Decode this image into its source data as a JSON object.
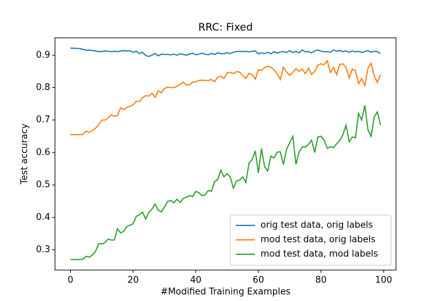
{
  "chart_data": {
    "type": "line",
    "title": "RRC: Fixed",
    "x_label": "#Modified Training Examples",
    "y_label": "Test accuracy",
    "x": [
      0,
      1,
      2,
      3,
      4,
      5,
      6,
      7,
      8,
      9,
      10,
      11,
      12,
      13,
      14,
      15,
      16,
      17,
      18,
      19,
      20,
      21,
      22,
      23,
      24,
      25,
      26,
      27,
      28,
      29,
      30,
      31,
      32,
      33,
      34,
      35,
      36,
      37,
      38,
      39,
      40,
      41,
      42,
      43,
      44,
      45,
      46,
      47,
      48,
      49,
      50,
      51,
      52,
      53,
      54,
      55,
      56,
      57,
      58,
      59,
      60,
      61,
      62,
      63,
      64,
      65,
      66,
      67,
      68,
      69,
      70,
      71,
      72,
      73,
      74,
      75,
      76,
      77,
      78,
      79,
      80,
      81,
      82,
      83,
      84,
      85,
      86,
      87,
      88,
      89,
      90,
      91,
      92,
      93,
      94,
      95,
      96,
      97,
      98,
      99
    ],
    "series": [
      {
        "name": "orig test data, orig labels",
        "color": "#1f77b4",
        "values": [
          0.922,
          0.921,
          0.921,
          0.92,
          0.918,
          0.915,
          0.916,
          0.914,
          0.913,
          0.911,
          0.911,
          0.913,
          0.912,
          0.911,
          0.912,
          0.911,
          0.913,
          0.914,
          0.913,
          0.913,
          0.909,
          0.912,
          0.905,
          0.909,
          0.899,
          0.896,
          0.9,
          0.905,
          0.898,
          0.903,
          0.902,
          0.902,
          0.901,
          0.903,
          0.9,
          0.904,
          0.902,
          0.9,
          0.903,
          0.906,
          0.901,
          0.903,
          0.906,
          0.903,
          0.901,
          0.905,
          0.902,
          0.907,
          0.905,
          0.904,
          0.908,
          0.905,
          0.909,
          0.911,
          0.912,
          0.911,
          0.912,
          0.91,
          0.912,
          0.913,
          0.904,
          0.907,
          0.905,
          0.909,
          0.904,
          0.911,
          0.906,
          0.91,
          0.911,
          0.908,
          0.914,
          0.908,
          0.912,
          0.907,
          0.916,
          0.91,
          0.911,
          0.907,
          0.913,
          0.916,
          0.912,
          0.91,
          0.911,
          0.909,
          0.916,
          0.912,
          0.914,
          0.911,
          0.913,
          0.909,
          0.913,
          0.91,
          0.912,
          0.908,
          0.911,
          0.914,
          0.909,
          0.912,
          0.911,
          0.905
        ]
      },
      {
        "name": "mod test data, orig labels",
        "color": "#ff7f0e",
        "values": [
          0.655,
          0.655,
          0.655,
          0.655,
          0.656,
          0.666,
          0.662,
          0.667,
          0.675,
          0.685,
          0.7,
          0.7,
          0.706,
          0.716,
          0.712,
          0.714,
          0.738,
          0.732,
          0.739,
          0.742,
          0.747,
          0.758,
          0.757,
          0.769,
          0.775,
          0.774,
          0.782,
          0.77,
          0.79,
          0.784,
          0.797,
          0.801,
          0.8,
          0.8,
          0.804,
          0.81,
          0.817,
          0.808,
          0.809,
          0.817,
          0.818,
          0.822,
          0.823,
          0.822,
          0.822,
          0.825,
          0.818,
          0.832,
          0.835,
          0.828,
          0.845,
          0.847,
          0.843,
          0.849,
          0.848,
          0.837,
          0.828,
          0.844,
          0.84,
          0.826,
          0.855,
          0.853,
          0.862,
          0.866,
          0.863,
          0.855,
          0.842,
          0.825,
          0.863,
          0.848,
          0.838,
          0.847,
          0.858,
          0.85,
          0.857,
          0.843,
          0.86,
          0.84,
          0.85,
          0.87,
          0.873,
          0.871,
          0.883,
          0.847,
          0.862,
          0.84,
          0.872,
          0.873,
          0.862,
          0.83,
          0.857,
          0.852,
          0.812,
          0.828,
          0.806,
          0.86,
          0.875,
          0.835,
          0.816,
          0.84
        ]
      },
      {
        "name": "mod test data, mod labels",
        "color": "#2ca02c",
        "values": [
          0.27,
          0.27,
          0.27,
          0.27,
          0.271,
          0.28,
          0.277,
          0.284,
          0.295,
          0.319,
          0.318,
          0.322,
          0.333,
          0.33,
          0.33,
          0.365,
          0.352,
          0.357,
          0.372,
          0.376,
          0.38,
          0.403,
          0.408,
          0.416,
          0.395,
          0.415,
          0.425,
          0.441,
          0.422,
          0.417,
          0.432,
          0.449,
          0.452,
          0.445,
          0.456,
          0.446,
          0.458,
          0.462,
          0.467,
          0.464,
          0.48,
          0.476,
          0.467,
          0.469,
          0.483,
          0.48,
          0.51,
          0.516,
          0.545,
          0.525,
          0.535,
          0.525,
          0.49,
          0.512,
          0.515,
          0.525,
          0.507,
          0.567,
          0.578,
          0.605,
          0.537,
          0.612,
          0.556,
          0.543,
          0.589,
          0.583,
          0.601,
          0.602,
          0.563,
          0.61,
          0.63,
          0.65,
          0.564,
          0.601,
          0.617,
          0.617,
          0.625,
          0.638,
          0.6,
          0.648,
          0.65,
          0.638,
          0.613,
          0.618,
          0.615,
          0.627,
          0.637,
          0.655,
          0.684,
          0.633,
          0.648,
          0.645,
          0.72,
          0.7,
          0.745,
          0.67,
          0.65,
          0.71,
          0.725,
          0.685
        ]
      }
    ],
    "xlim": [
      -4.95,
      103.95
    ],
    "xticks": [
      0,
      20,
      40,
      60,
      80,
      100
    ],
    "ylim": [
      0.2375,
      0.9535
    ],
    "yticks": [
      0.3,
      0.4,
      0.5,
      0.6,
      0.7,
      0.8,
      0.9
    ],
    "legend": "lower right",
    "grid": false
  }
}
